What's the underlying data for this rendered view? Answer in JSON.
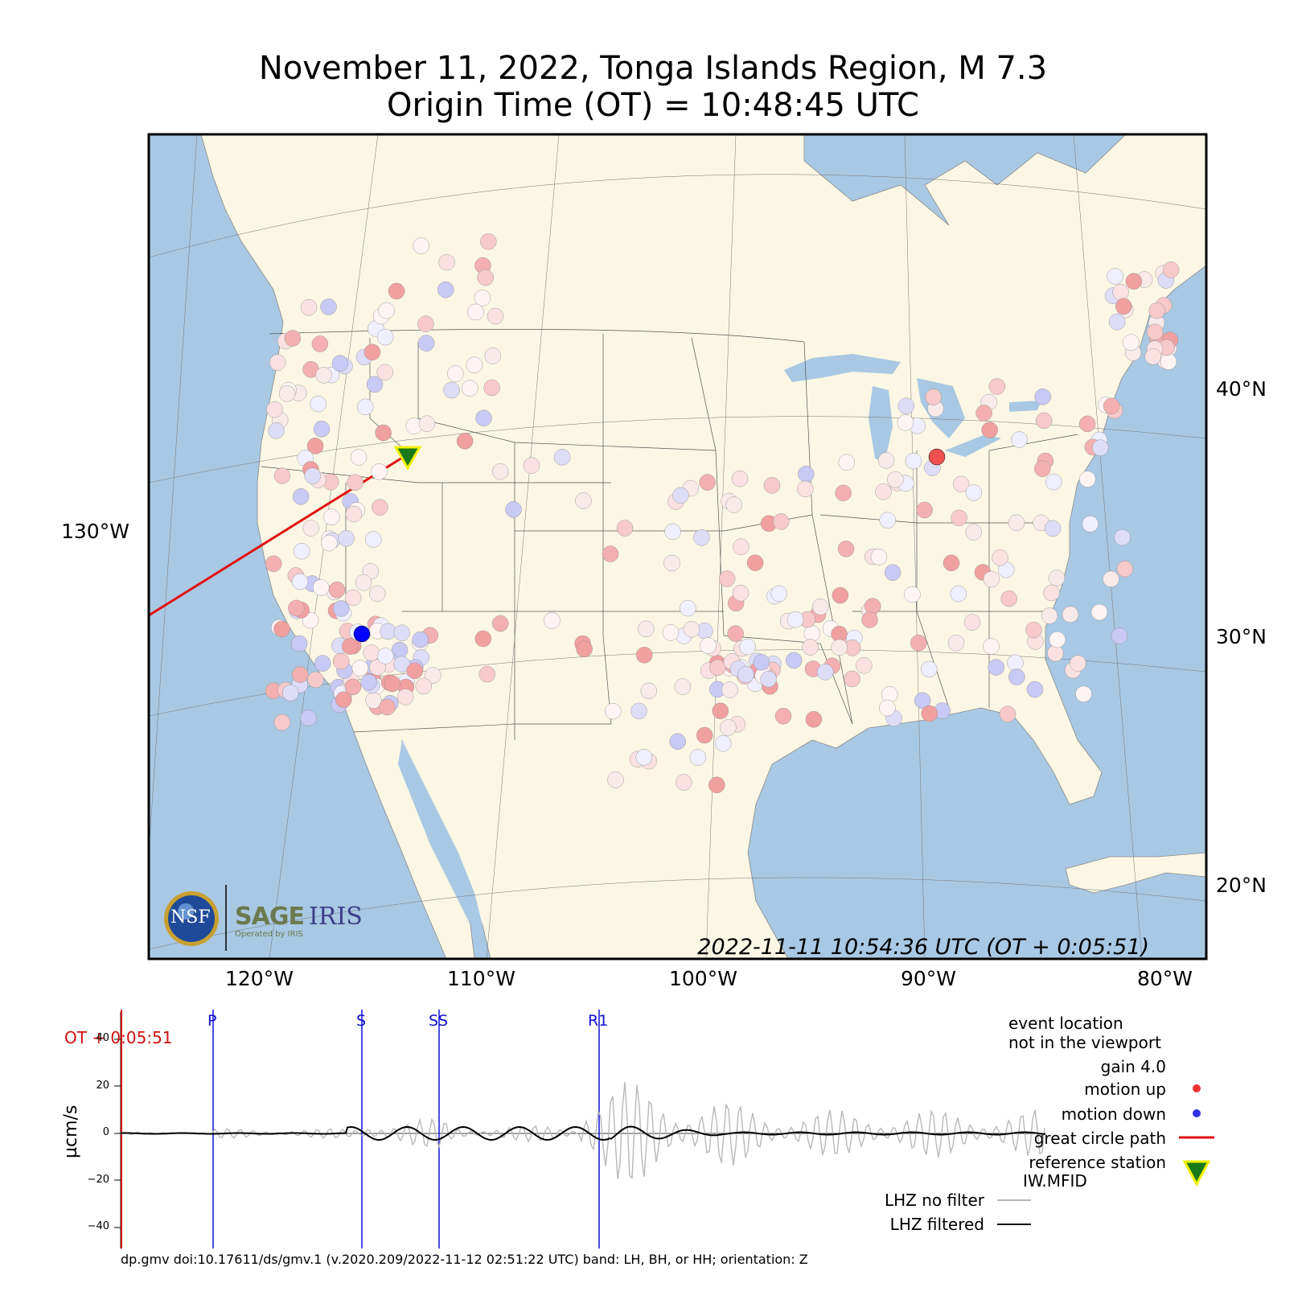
{
  "title": {
    "line1": "November 11, 2022, Tonga Islands Region, M 7.3",
    "line2": "Origin Time (OT) = 10:48:45 UTC"
  },
  "map": {
    "timestamp": "2022-11-11 10:54:36 UTC (OT + 0:05:51)",
    "lon_labels": [
      "120°W",
      "110°W",
      "100°W",
      "90°W",
      "80°W"
    ],
    "lon_side_label": "130°W",
    "lat_labels": [
      "40°N",
      "30°N",
      "20°N"
    ],
    "colors": {
      "ocean": "#a9c8e3",
      "land": "#fbf7e4",
      "path": "#e01010",
      "up": "#f04040",
      "down": "#3030f0",
      "reference": "#1a7a1a"
    },
    "logo": {
      "nsf": "NSF",
      "sage": "SAGE",
      "iris": "IRIS",
      "operated": "Operated by IRIS"
    }
  },
  "seismogram": {
    "ot_label": "OT + 0:05:51",
    "phases": [
      "P",
      "S",
      "SS",
      "R1"
    ],
    "y_ticks": [
      "40",
      "20",
      "0",
      "−20",
      "−40"
    ],
    "y_label": "µcm/s"
  },
  "legend": {
    "event_location": "event location",
    "not_in_viewport": "not in the viewport",
    "gain": "gain  4.0",
    "motion_up": "motion up",
    "motion_down": "motion down",
    "great_circle": "great circle path",
    "reference_station": "reference station",
    "reference_code": "IW.MFID",
    "no_filter": "LHZ no filter",
    "filtered": "LHZ filtered"
  },
  "footer": "dp.gmv doi:10.17611/ds/gmv.1 (v.2020.209/2022-11-12 02:51:22 UTC) band: LH, BH, or HH; orientation: Z"
}
